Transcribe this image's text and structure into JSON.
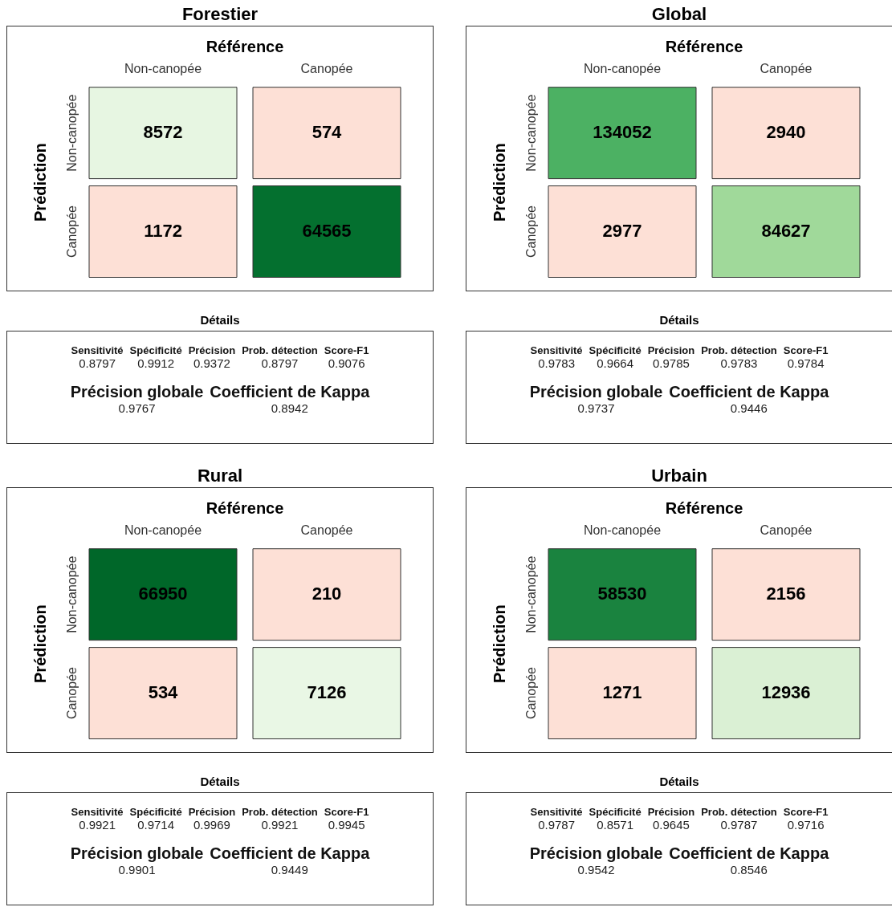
{
  "chart_data": [
    {
      "type": "heatmap",
      "title": "Forestier",
      "xlabel": "Référence",
      "ylabel": "Prédiction",
      "categories": [
        "Non-canopée",
        "Canopée"
      ],
      "y_categories": [
        "Non-canopée",
        "Canopée"
      ],
      "cells": [
        [
          8572,
          574
        ],
        [
          1172,
          64565
        ]
      ],
      "data_labels": true
    },
    {
      "type": "heatmap",
      "title": "Global",
      "xlabel": "Référence",
      "ylabel": "Prédiction",
      "categories": [
        "Non-canopée",
        "Canopée"
      ],
      "y_categories": [
        "Non-canopée",
        "Canopée"
      ],
      "cells": [
        [
          134052,
          2940
        ],
        [
          2977,
          84627
        ]
      ],
      "data_labels": true
    },
    {
      "type": "other",
      "title": "Détails",
      "categories": [
        "Sensitivité",
        "Spécificité",
        "Précision",
        "Prob. détection",
        "Score-F1",
        "Précision globale",
        "Coefficient de Kappa"
      ],
      "values": [
        0.8797,
        0.9912,
        0.9372,
        0.8797,
        0.9076,
        0.9767,
        0.8942
      ],
      "data_labels": true
    },
    {
      "type": "other",
      "title": "Détails",
      "categories": [
        "Sensitivité",
        "Spécificité",
        "Précision",
        "Prob. détection",
        "Score-F1",
        "Précision globale",
        "Coefficient de Kappa"
      ],
      "values": [
        0.9783,
        0.9664,
        0.9785,
        0.9783,
        0.9784,
        0.9737,
        0.9446
      ],
      "data_labels": true
    },
    {
      "type": "heatmap",
      "title": "Rural",
      "xlabel": "Référence",
      "ylabel": "Prédiction",
      "categories": [
        "Non-canopée",
        "Canopée"
      ],
      "y_categories": [
        "Non-canopée",
        "Canopée"
      ],
      "cells": [
        [
          66950,
          210
        ],
        [
          534,
          7126
        ]
      ],
      "data_labels": true
    },
    {
      "type": "heatmap",
      "title": "Urbain",
      "xlabel": "Référence",
      "ylabel": "Prédiction",
      "categories": [
        "Non-canopée",
        "Canopée"
      ],
      "y_categories": [
        "Non-canopée",
        "Canopée"
      ],
      "cells": [
        [
          58530,
          2156
        ],
        [
          1271,
          12936
        ]
      ],
      "data_labels": true
    },
    {
      "type": "other",
      "title": "Détails",
      "categories": [
        "Sensitivité",
        "Spécificité",
        "Précision",
        "Prob. détection",
        "Score-F1",
        "Précision globale",
        "Coefficient de Kappa"
      ],
      "values": [
        0.9921,
        0.9714,
        0.9969,
        0.9921,
        0.9945,
        0.9901,
        0.9449
      ],
      "data_labels": true
    },
    {
      "type": "other",
      "title": "Détails",
      "categories": [
        "Sensitivité",
        "Spécificité",
        "Précision",
        "Prob. détection",
        "Score-F1",
        "Précision globale",
        "Coefficient de Kappa"
      ],
      "values": [
        0.9787,
        0.8571,
        0.9645,
        0.9787,
        0.9716,
        0.9542,
        0.8546
      ],
      "data_labels": true
    }
  ]
}
